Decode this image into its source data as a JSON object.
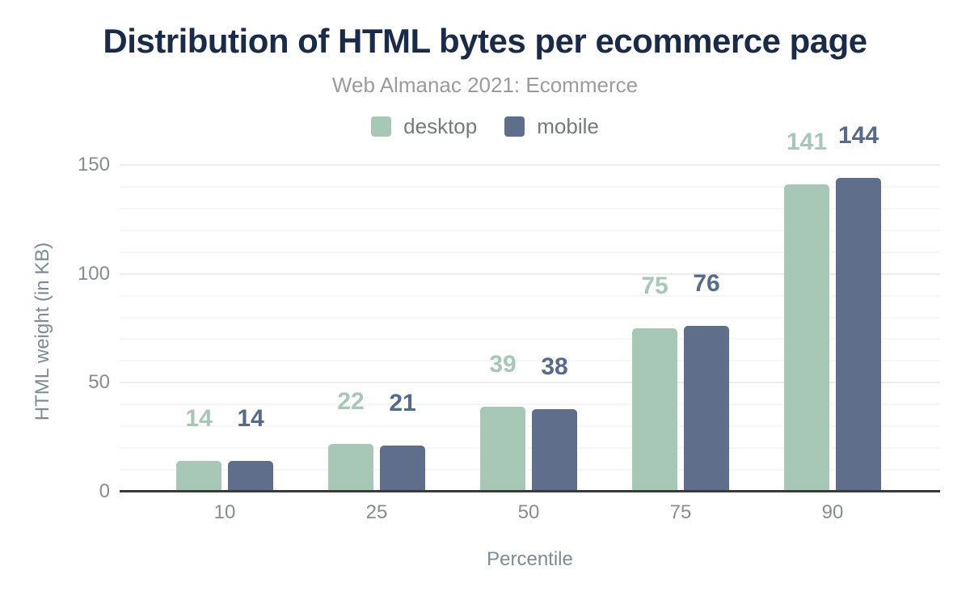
{
  "chart_data": {
    "type": "bar",
    "title": "Distribution of HTML bytes per ecommerce page",
    "subtitle": "Web Almanac 2021: Ecommerce",
    "categories": [
      "10",
      "25",
      "50",
      "75",
      "90"
    ],
    "series": [
      {
        "name": "desktop",
        "color": "#a7c8b6",
        "label_color": "#a7c8b6",
        "values": [
          14,
          22,
          39,
          75,
          141
        ]
      },
      {
        "name": "mobile",
        "color": "#5f6f8b",
        "label_color": "#566b8b",
        "values": [
          14,
          21,
          38,
          76,
          144
        ]
      }
    ],
    "xlabel": "Percentile",
    "ylabel": "HTML weight (in KB)",
    "ylim": [
      0,
      150
    ],
    "yticks": [
      0,
      50,
      100,
      150
    ],
    "grid": {
      "minor_step": 10,
      "major_step": 50,
      "visible": true
    },
    "legend_position": "top",
    "data_labels": true
  },
  "colors": {
    "background": "#ffffff",
    "title_text": "#1a2b49",
    "subtitle_text": "#9b9b9b",
    "legend_text": "#76797c",
    "tick_text": "#878c93",
    "axis_title_text": "#7e8b95",
    "axis_line": "#3a3a3c",
    "grid_minor": "#f6f6f6",
    "grid_major": "#ececec"
  }
}
